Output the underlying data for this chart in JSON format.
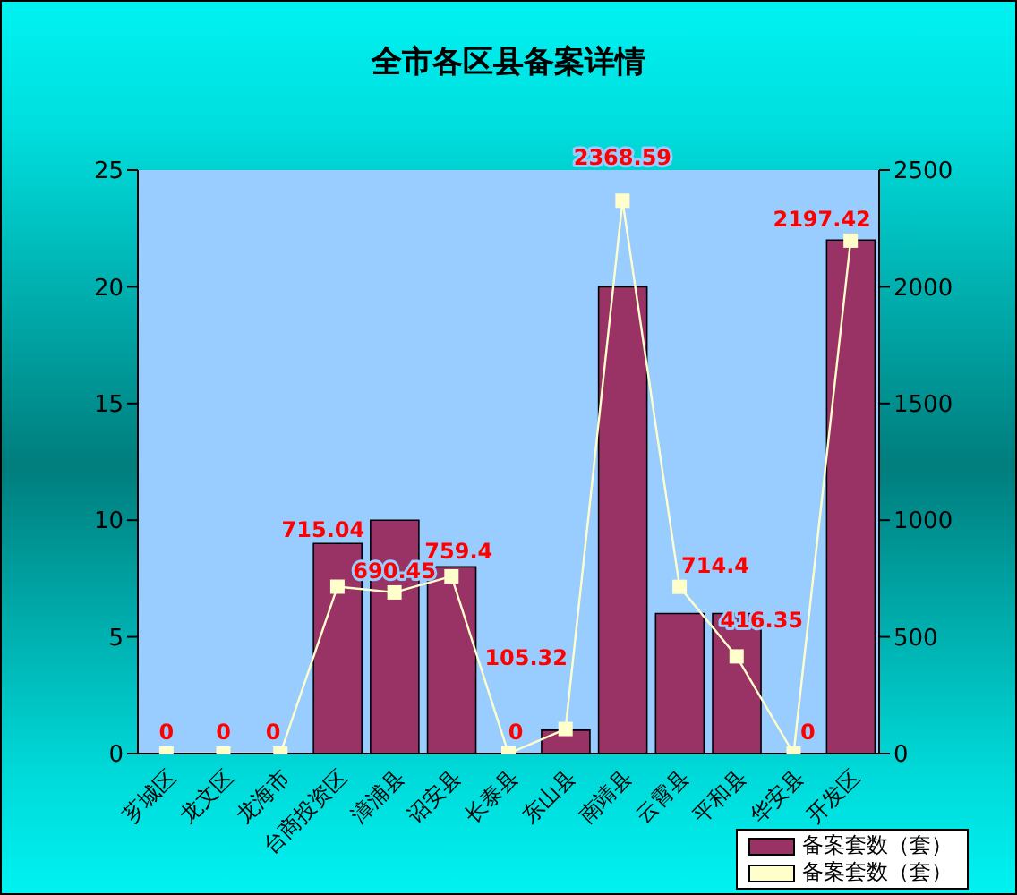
{
  "chart_data": {
    "type": "bar",
    "title": "全市各区县备案详情",
    "categories": [
      "芗城区",
      "龙文区",
      "龙海市",
      "台商投资区",
      "漳浦县",
      "诏安县",
      "长泰县",
      "东山县",
      "南靖县",
      "云霄县",
      "平和县",
      "华安县",
      "开发区"
    ],
    "series": [
      {
        "name": "备案套数（套）",
        "color": "#993366",
        "values": [
          0,
          0,
          0,
          9,
          10,
          8,
          0,
          1,
          20,
          6,
          6,
          0,
          22
        ]
      },
      {
        "name": "备案套数（套）",
        "type": "line",
        "axis": "y2",
        "color": "#ffffcc",
        "values": [
          0,
          0,
          0,
          715.04,
          690.45,
          759.4,
          0,
          105.32,
          2368.59,
          714.4,
          416.35,
          0,
          2197.42
        ],
        "value_labels": [
          "0",
          "0",
          "0",
          "715.04",
          "690.45",
          "759.4",
          "0",
          "105.32",
          "2368.59",
          "714.4",
          "416.35",
          "0",
          "2197.42"
        ]
      }
    ],
    "ylim": [
      0,
      25
    ],
    "yticks": [
      0,
      5,
      10,
      15,
      20,
      25
    ],
    "y2lim": [
      0,
      2500
    ],
    "y2ticks": [
      0,
      500,
      1000,
      1500,
      2000,
      2500
    ],
    "marker": "square",
    "legend": "bottom right"
  }
}
